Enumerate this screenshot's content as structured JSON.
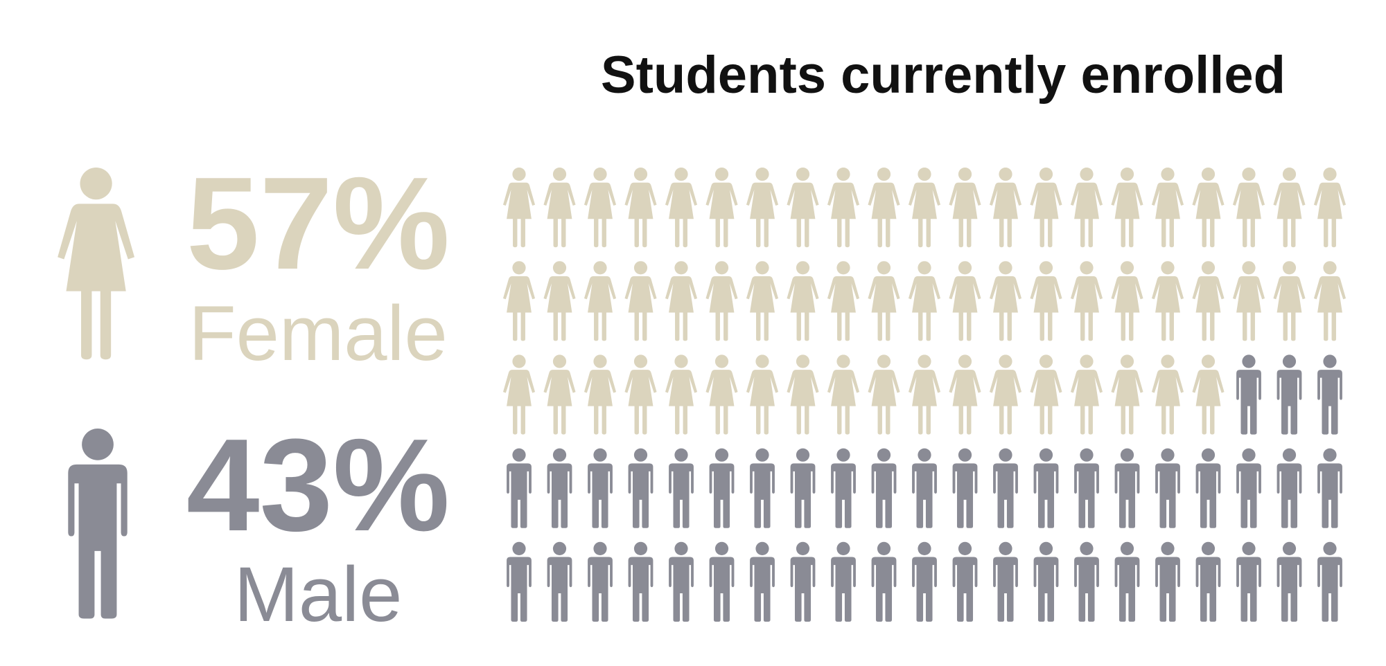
{
  "chart_data": {
    "type": "pictograph",
    "title": "Students currently enrolled",
    "series": [
      {
        "name": "Female",
        "color": "#dbd4bd",
        "values": [
          57
        ],
        "value_labels": [
          "57%"
        ]
      },
      {
        "name": "Male",
        "color": "#8a8b95",
        "values": [
          43
        ],
        "value_labels": [
          "43%"
        ]
      }
    ]
  }
}
